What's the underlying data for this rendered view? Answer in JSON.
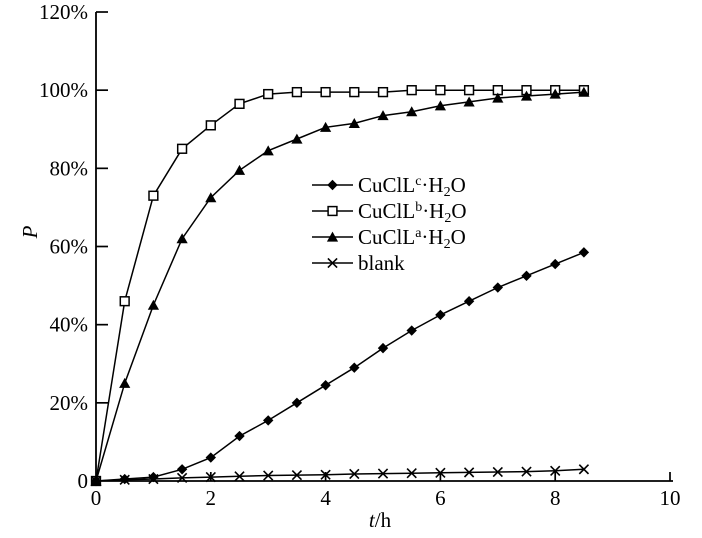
{
  "chart_data": {
    "type": "line",
    "title": "",
    "xlabel": "t/h",
    "xlabel_t": "t",
    "xlabel_unit": "/h",
    "ylabel": "P",
    "xlim": [
      0,
      10
    ],
    "ylim": [
      0,
      120
    ],
    "grid": false,
    "legend_position": "center-right",
    "line_color": "#000000",
    "background_color": "#ffffff",
    "x_ticks_labeled": [
      0,
      2,
      4,
      6,
      8,
      10
    ],
    "x_tick_labels": [
      "0",
      "2",
      "4",
      "6",
      "8",
      "10"
    ],
    "y_ticks": [
      0,
      20,
      40,
      60,
      80,
      100,
      120
    ],
    "y_tick_labels": [
      "0",
      "20%",
      "40%",
      "60%",
      "80%",
      "100%",
      "120%"
    ],
    "x": [
      0,
      0.5,
      1,
      1.5,
      2,
      2.5,
      3,
      3.5,
      4,
      4.5,
      5,
      5.5,
      6,
      6.5,
      7,
      7.5,
      8,
      8.5
    ],
    "series": [
      {
        "name": "CuClL^b·H2O",
        "marker": "square-open",
        "values": [
          0,
          46,
          73,
          85,
          91,
          96.5,
          99,
          99.5,
          99.5,
          99.5,
          99.5,
          100,
          100,
          100,
          100,
          100,
          100,
          100
        ]
      },
      {
        "name": "CuClL^a·H2O",
        "marker": "triangle-filled",
        "values": [
          0,
          25,
          45,
          62,
          72.5,
          79.5,
          84.5,
          87.5,
          90.5,
          91.5,
          93.5,
          94.5,
          96,
          97,
          98,
          98.5,
          99,
          99.5
        ]
      },
      {
        "name": "CuClL^c·H2O",
        "marker": "diamond-filled",
        "values": [
          0,
          0.5,
          1,
          3,
          6,
          11.5,
          15.5,
          20,
          24.5,
          29,
          34,
          38.5,
          42.5,
          46,
          49.5,
          52.5,
          55.5,
          58.5
        ]
      },
      {
        "name": "blank",
        "marker": "x-cross",
        "values": [
          0,
          0.3,
          0.5,
          0.8,
          1,
          1.2,
          1.4,
          1.5,
          1.6,
          1.8,
          1.9,
          2,
          2.1,
          2.2,
          2.3,
          2.4,
          2.6,
          3
        ]
      }
    ],
    "legend": [
      {
        "marker": "diamond-filled",
        "label": "CuClL^c·H2O",
        "parts": [
          {
            "t": "CuClL"
          },
          {
            "t": "c",
            "s": "sup"
          },
          {
            "t": "·H"
          },
          {
            "t": "2",
            "s": "sub"
          },
          {
            "t": "O"
          }
        ]
      },
      {
        "marker": "square-open",
        "label": "CuClL^b·H2O",
        "parts": [
          {
            "t": "CuClL"
          },
          {
            "t": "b",
            "s": "sup"
          },
          {
            "t": "·H"
          },
          {
            "t": "2",
            "s": "sub"
          },
          {
            "t": "O"
          }
        ]
      },
      {
        "marker": "triangle-filled",
        "label": "CuClL^a·H2O",
        "parts": [
          {
            "t": "CuClL"
          },
          {
            "t": "a",
            "s": "sup"
          },
          {
            "t": "·H"
          },
          {
            "t": "2",
            "s": "sub"
          },
          {
            "t": "O"
          }
        ]
      },
      {
        "marker": "x-cross",
        "label": "blank",
        "parts": [
          {
            "t": "blank"
          }
        ]
      }
    ]
  }
}
